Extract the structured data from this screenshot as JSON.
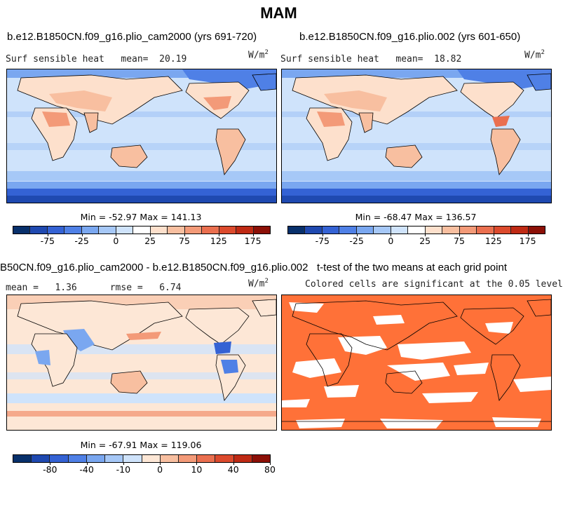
{
  "page_title": "MAM",
  "panels": {
    "top_left": {
      "case": "b.e12.B1850CN.f09_g16.plio_cam2000 (yrs 691-720)",
      "variable": "Surf sensible heat",
      "mean_label": "mean=",
      "mean": "20.19",
      "units_base": "W/m",
      "units_exp": "2",
      "minmax": "Min = -52.97 Max = 141.13"
    },
    "top_right": {
      "case": "b.e12.B1850CN.f09_g16.plio.002 (yrs 601-650)",
      "variable": "Surf sensible heat",
      "mean_label": "mean=",
      "mean": "18.82",
      "units_base": "W/m",
      "units_exp": "2",
      "minmax": "Min = -68.47 Max = 136.57"
    },
    "bottom_left": {
      "case": "B50CN.f09_g16.plio_cam2000 - b.e12.B1850CN.f09_g16.plio.002",
      "mean_label": "mean =",
      "mean": "1.36",
      "rmse_label": "rmse =",
      "rmse": "6.74",
      "units_base": "W/m",
      "units_exp": "2",
      "minmax": "Min = -67.91 Max = 119.06"
    },
    "bottom_right": {
      "title": "t-test of the two means at each grid point",
      "subtitle": "Colored cells are significant at the 0.05 level"
    }
  },
  "colorbars": {
    "top_left": {
      "ticks": [
        "-75",
        "-25",
        "0",
        "25",
        "75",
        "125",
        "175"
      ],
      "colors": [
        "#08306b",
        "#1f49b0",
        "#3462d4",
        "#4f80e6",
        "#7aa7f0",
        "#a6c8f7",
        "#cfe3fb",
        "#ffffff",
        "#fde0cc",
        "#f8bfa0",
        "#f39a78",
        "#ea6f4f",
        "#dc4a2d",
        "#bf2a14",
        "#8c1007"
      ]
    },
    "top_right": {
      "ticks": [
        "-75",
        "-25",
        "0",
        "25",
        "75",
        "125",
        "175"
      ],
      "colors": [
        "#08306b",
        "#1f49b0",
        "#3462d4",
        "#4f80e6",
        "#7aa7f0",
        "#a6c8f7",
        "#cfe3fb",
        "#ffffff",
        "#fde0cc",
        "#f8bfa0",
        "#f39a78",
        "#ea6f4f",
        "#dc4a2d",
        "#bf2a14",
        "#8c1007"
      ]
    },
    "bottom_left": {
      "ticks": [
        "-80",
        "-40",
        "-10",
        "0",
        "10",
        "40",
        "80"
      ],
      "colors": [
        "#08306b",
        "#1f49b0",
        "#3462d4",
        "#4f80e6",
        "#7aa7f0",
        "#a6c8f7",
        "#cfe3fb",
        "#fde7d6",
        "#f8bfa0",
        "#f39a78",
        "#ea6f4f",
        "#dc4a2d",
        "#bf2a14",
        "#8c1007"
      ]
    }
  },
  "colors": {
    "significant": "#ff7138",
    "ocean_mean": "#cfe3fb",
    "land_positive": "#f8bfa0",
    "antarctic": "#3462d4",
    "diff_background": "#fde7d6"
  }
}
